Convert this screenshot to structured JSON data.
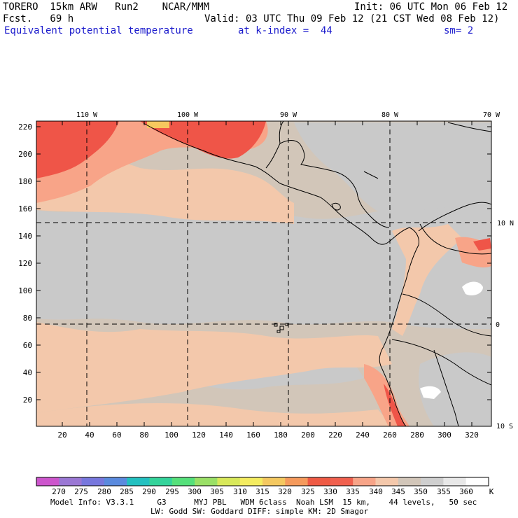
{
  "header": {
    "model": "TORERO  15km ARW   Run2    NCAR/MMM",
    "init": "Init: 06 UTC Mon 06 Feb 12",
    "fcst": "Fcst.   69 h",
    "valid": "Valid: 03 UTC Thu 09 Feb 12 (21 CST Wed 08 Feb 12)",
    "field": "Equivalent potential temperature",
    "kindex": "at k-index =  44",
    "smooth": "sm= 2"
  },
  "map": {
    "lon_labels": [
      "110 W",
      "100 W",
      "90 W",
      "80 W",
      "70 W"
    ],
    "lat_labels": [
      "10 N",
      "0",
      "10 S"
    ],
    "x_ticks": [
      "20",
      "40",
      "60",
      "80",
      "100",
      "120",
      "140",
      "160",
      "180",
      "200",
      "220",
      "240",
      "260",
      "280",
      "300",
      "320"
    ],
    "y_ticks": [
      "220",
      "200",
      "180",
      "160",
      "140",
      "120",
      "100",
      "80",
      "60",
      "40",
      "20"
    ],
    "colors": {
      "bg": "#d2c6b9",
      "gray": "#c9c9c9",
      "peach": "#f3c8ab",
      "salmon": "#f8a488",
      "red": "#ef5548",
      "orange": "#f7c85e",
      "white": "#ffffff",
      "coast": "#000000"
    }
  },
  "colorbar": {
    "colors": [
      "#cc55cc",
      "#9a77d4",
      "#7777dd",
      "#5a8ade",
      "#22c0c0",
      "#33d39a",
      "#55e07a",
      "#9ae066",
      "#d8e85a",
      "#f4ec60",
      "#f4c860",
      "#f59a5c",
      "#ee5a44",
      "#f0604e",
      "#f7a488",
      "#f4c8ab",
      "#d2c6b9",
      "#cfcfcf",
      "#e8e8e8",
      "#ffffff"
    ],
    "labels": [
      "270",
      "275",
      "280",
      "285",
      "290",
      "295",
      "300",
      "305",
      "310",
      "315",
      "320",
      "325",
      "330",
      "335",
      "340",
      "345",
      "350",
      "355",
      "360"
    ],
    "unit": "K"
  },
  "footer": {
    "line1": "Model Info: V3.3.1     G3      MYJ PBL   WDM 6class  Noah LSM  15 km,    44 levels,   50 sec",
    "line2": "LW: Godd SW: Goddard DIFF: simple KM: 2D Smagor"
  }
}
